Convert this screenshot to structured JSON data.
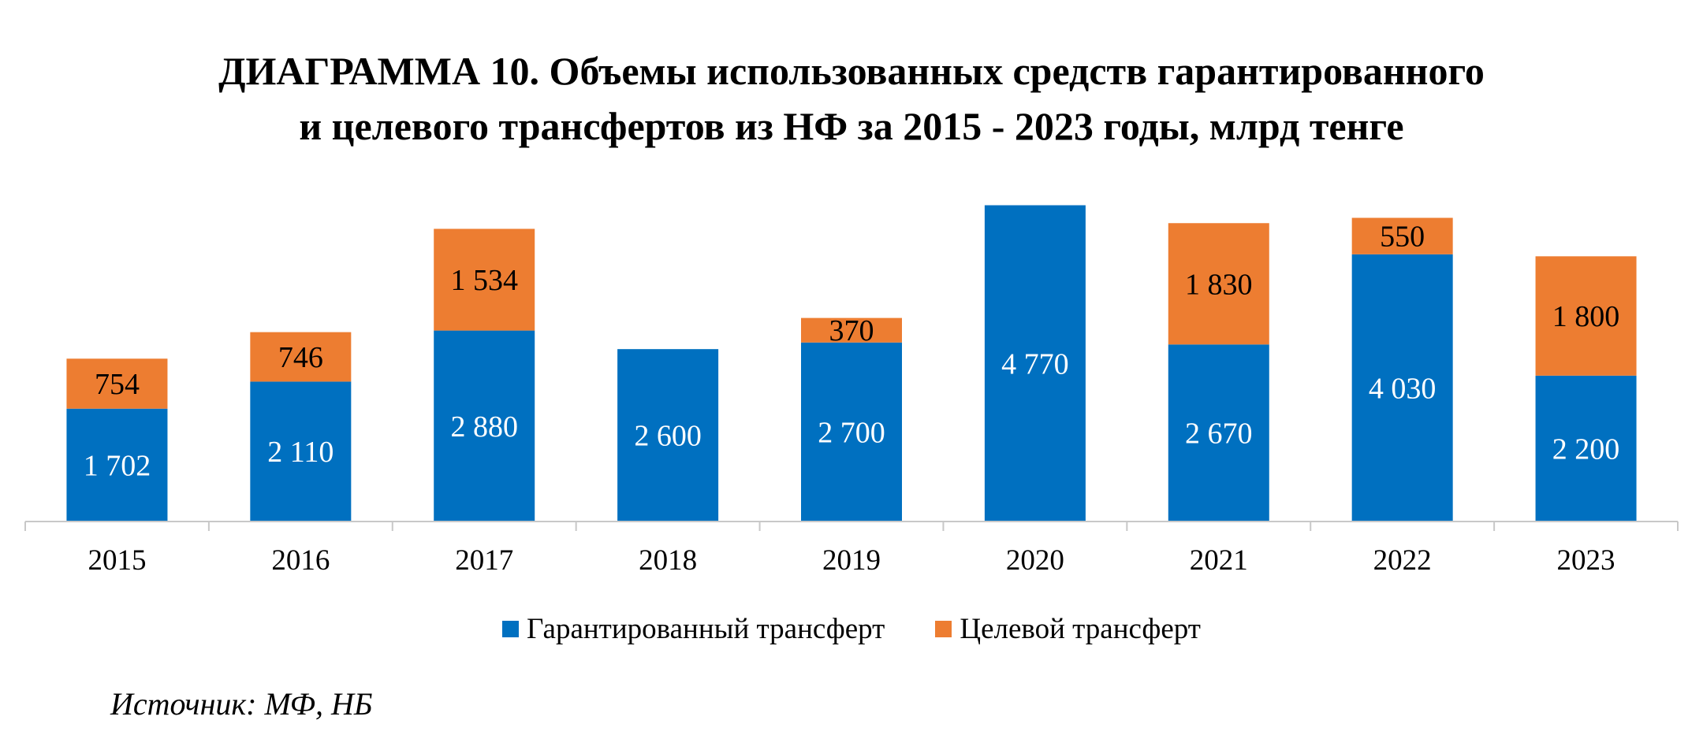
{
  "chart_data": {
    "type": "bar",
    "stacked": true,
    "title_line1": "ДИАГРАММА 10. Объемы использованных средств гарантированного",
    "title_line2": "и целевого трансфертов из НФ за 2015 - 2023 годы, млрд тенге",
    "categories": [
      "2015",
      "2016",
      "2017",
      "2018",
      "2019",
      "2020",
      "2021",
      "2022",
      "2023"
    ],
    "series": [
      {
        "name": "Гарантированный трансферт",
        "color": "#0070C0",
        "values": [
          1702,
          2110,
          2880,
          2600,
          2700,
          4770,
          2670,
          4030,
          2200
        ],
        "labels": [
          "1 702",
          "2 110",
          "2 880",
          "2 600",
          "2 700",
          "4 770",
          "2 670",
          "4 030",
          "2 200"
        ]
      },
      {
        "name": "Целевой трансферт",
        "color": "#ED7D31",
        "values": [
          754,
          746,
          1534,
          null,
          370,
          null,
          1830,
          550,
          1800
        ],
        "labels": [
          "754",
          "746",
          "1 534",
          "",
          "370",
          "",
          "1 830",
          "550",
          "1 800"
        ]
      }
    ],
    "ylim": [
      0,
      4800
    ],
    "grid": false,
    "legend_position": "bottom"
  },
  "source": "Источник: МФ, НБ"
}
